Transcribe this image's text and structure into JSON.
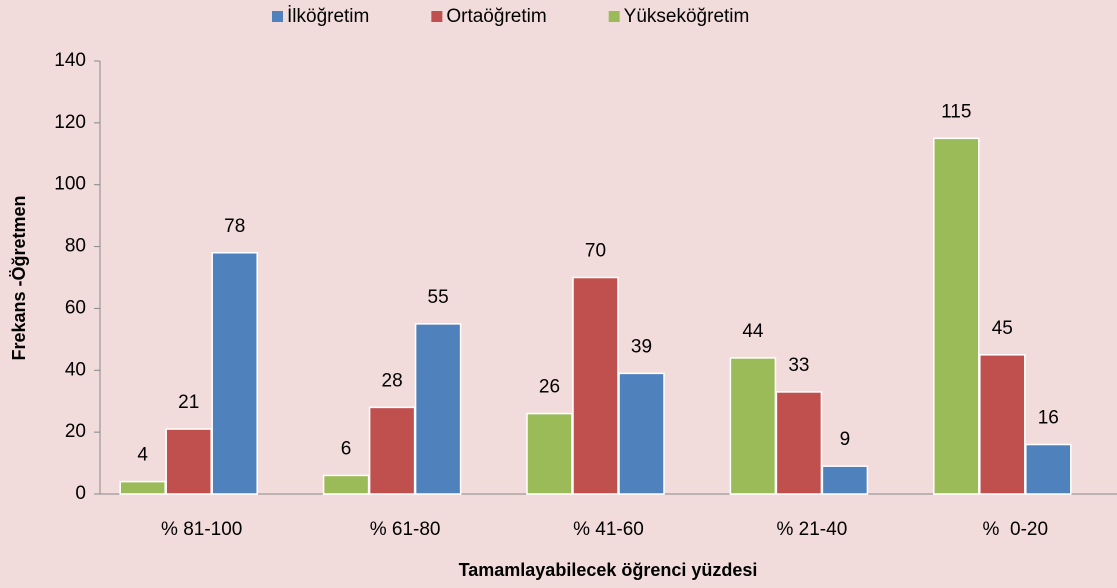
{
  "chart_data": {
    "type": "bar",
    "x_label": "Tamamlayabilecek öğrenci yüzdesi",
    "y_label": "Frekans -Öğretmen",
    "categories": [
      "% 81-100",
      "% 61-80",
      "% 41-60",
      "% 21-40",
      "%  0-20"
    ],
    "series": [
      {
        "name": "İlköğretim",
        "color": "#4f81bd",
        "values": [
          78,
          55,
          39,
          9,
          16
        ]
      },
      {
        "name": "Ortaöğretim",
        "color": "#c0504d",
        "values": [
          21,
          28,
          70,
          33,
          45
        ]
      },
      {
        "name": "Yükseköğretim",
        "color": "#9bbb59",
        "values": [
          4,
          6,
          26,
          44,
          115
        ]
      }
    ],
    "ylim": [
      0,
      140
    ],
    "yticks": [
      0,
      20,
      40,
      60,
      80,
      100,
      120,
      140
    ],
    "legend": "top",
    "grid": false
  }
}
